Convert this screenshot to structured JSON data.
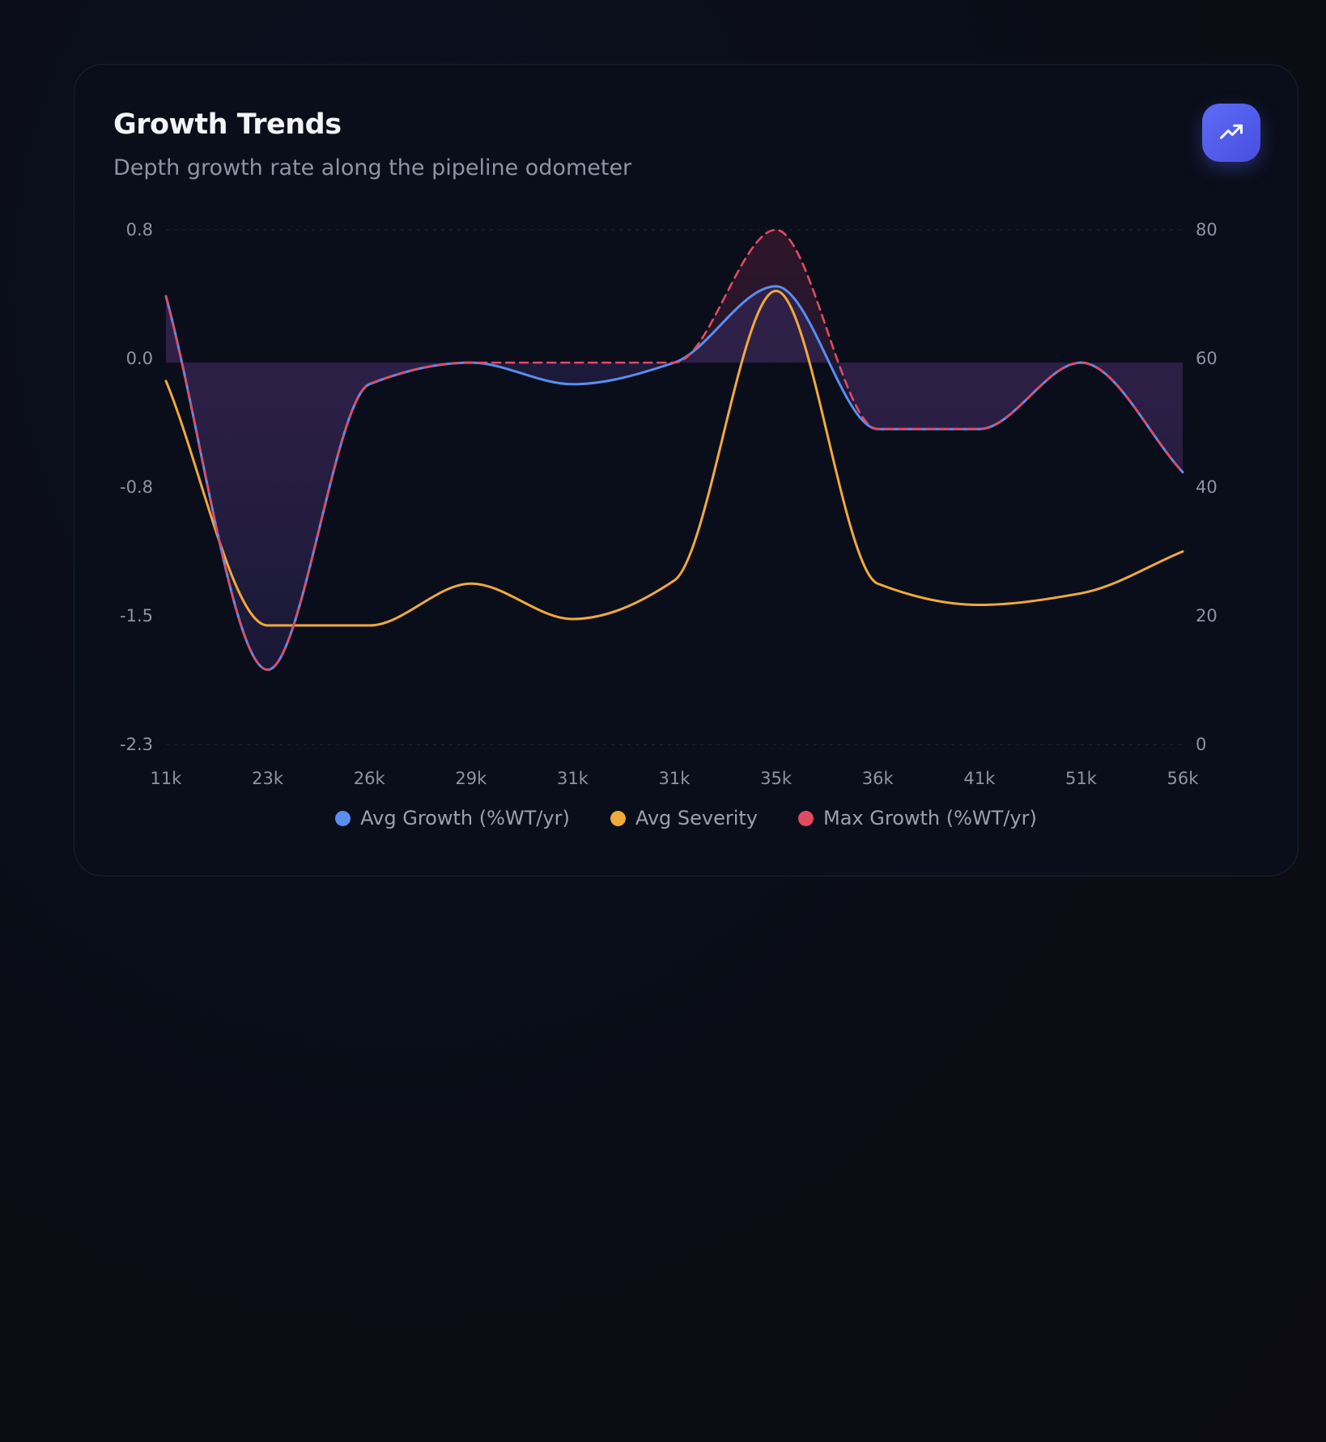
{
  "card": {
    "title": "Growth Trends",
    "subtitle": "Depth growth rate along the pipeline odometer",
    "badge_icon": "trending-up-icon"
  },
  "chart_data": {
    "type": "line",
    "title": "Growth Trends",
    "subtitle": "Depth growth rate along the pipeline odometer",
    "x_tick_labels": [
      "11k",
      "23k",
      "26k",
      "29k",
      "31k",
      "31k",
      "35k",
      "36k",
      "41k",
      "51k",
      "56k"
    ],
    "y_left": {
      "ticks": [
        "0.8",
        "0.0",
        "-0.8",
        "-1.5",
        "-2.3"
      ],
      "range": [
        -2.3,
        0.8
      ]
    },
    "y_right": {
      "ticks": [
        "80",
        "60",
        "40",
        "20",
        "0"
      ],
      "range": [
        0,
        80
      ]
    },
    "grid": "dashed horizontal at top and bottom",
    "legend_position": "bottom-center",
    "series": [
      {
        "name": "Avg Growth (%WT/yr)",
        "axis": "left",
        "color": "#5b8def",
        "style": "solid",
        "values": [
          0.4,
          -1.85,
          -0.13,
          0.0,
          -0.13,
          0.0,
          0.46,
          -0.4,
          -0.4,
          0.0,
          -0.66
        ]
      },
      {
        "name": "Avg Severity",
        "axis": "right",
        "color": "#f0a93b",
        "style": "solid",
        "values": [
          56.5,
          18.5,
          18.5,
          25,
          19.5,
          25.5,
          70.5,
          25,
          21.7,
          23.5,
          30
        ]
      },
      {
        "name": "Max Growth (%WT/yr)",
        "axis": "left",
        "color": "#e04b63",
        "style": "dashed",
        "values": [
          0.4,
          -1.85,
          -0.13,
          0.0,
          0.0,
          0.0,
          0.8,
          -0.4,
          -0.4,
          0.0,
          -0.66
        ]
      }
    ]
  }
}
